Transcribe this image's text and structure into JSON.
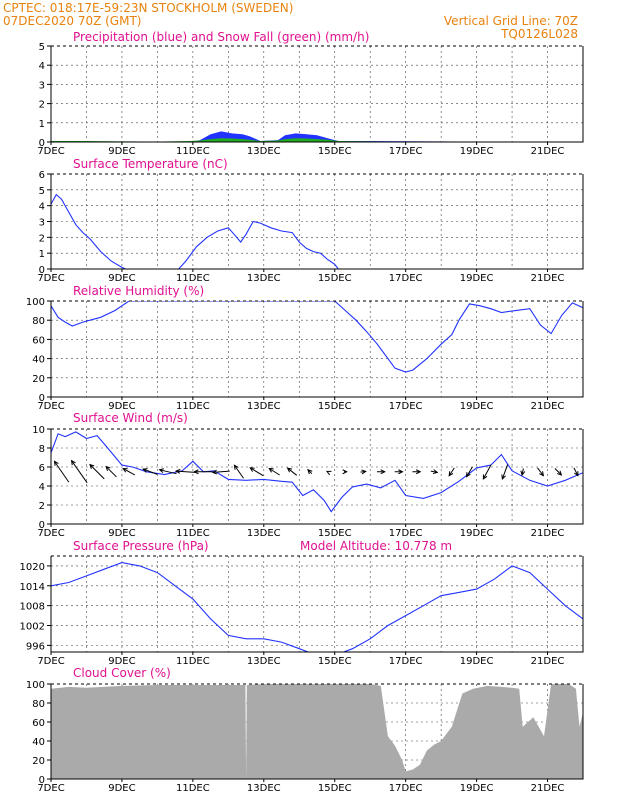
{
  "header": {
    "line1_left": "CPTEC:   018:17E-59:23N   STOCKHOLM (SWEDEN)",
    "line2_left": "07DEC2020 70Z (GMT)",
    "line2_right": "Vertical Grid Line: 70Z",
    "line3_right": "TQ0126L028"
  },
  "colors": {
    "header": "#e8820e",
    "title": "#e0108f",
    "line": "#2233ff",
    "snow": "#22aa22",
    "cloud": "#aaaaaa"
  },
  "x_ticks": [
    "7DEC",
    "9DEC",
    "11DEC",
    "13DEC",
    "15DEC",
    "17DEC",
    "19DEC",
    "21DEC"
  ],
  "chart_data": [
    {
      "id": "precip",
      "type": "area",
      "title": "Precipitation (blue) and Snow Fall (green) (mm/h)",
      "ylim": [
        0,
        5
      ],
      "y_ticks": [
        0,
        1,
        2,
        3,
        4,
        5
      ],
      "x_range_days": [
        7,
        22
      ],
      "grid": true,
      "series": [
        {
          "name": "Precipitation",
          "color": "#2233ff",
          "x": [
            7,
            10.9,
            11.2,
            11.5,
            11.8,
            12.1,
            12.4,
            12.6,
            12.9,
            13.4,
            13.6,
            13.9,
            14.2,
            14.5,
            14.8,
            15.1,
            22
          ],
          "values": [
            0,
            0,
            0.1,
            0.4,
            0.55,
            0.45,
            0.4,
            0.3,
            0.05,
            0.1,
            0.35,
            0.45,
            0.4,
            0.35,
            0.2,
            0.05,
            0
          ]
        },
        {
          "name": "Snow Fall",
          "color": "#22aa22",
          "x": [
            7,
            8,
            9,
            10,
            10.9,
            11.2,
            11.5,
            11.8,
            12.1,
            12.4,
            12.6,
            12.9,
            13.4,
            13.6,
            13.9,
            14.2,
            14.5,
            14.8,
            15.1,
            16,
            17,
            18,
            19,
            20,
            21,
            22
          ],
          "values": [
            0.05,
            0.05,
            0.03,
            0.02,
            0.05,
            0.08,
            0.15,
            0.2,
            0.18,
            0.15,
            0.12,
            0.05,
            0.08,
            0.15,
            0.2,
            0.18,
            0.15,
            0.12,
            0.05,
            0.03,
            0.02,
            0.02,
            0.02,
            0.02,
            0.02,
            0.02
          ]
        }
      ]
    },
    {
      "id": "temp",
      "type": "line",
      "title": "Surface Temperature (nC)",
      "ylim": [
        0,
        6
      ],
      "y_ticks": [
        0,
        1,
        2,
        3,
        4,
        5,
        6
      ],
      "x_range_days": [
        7,
        22
      ],
      "grid": true,
      "series": [
        {
          "name": "Temperature",
          "color": "#2233ff",
          "x": [
            7.0,
            7.15,
            7.3,
            7.5,
            7.7,
            7.9,
            8.1,
            8.4,
            8.7,
            9.0,
            9.1,
            10.6,
            10.8,
            11.1,
            11.4,
            11.7,
            12.0,
            12.2,
            12.35,
            12.5,
            12.7,
            12.9,
            13.2,
            13.5,
            13.8,
            14.0,
            14.2,
            14.4,
            14.6,
            14.8,
            15.0,
            15.1
          ],
          "values": [
            4.1,
            4.7,
            4.4,
            3.6,
            2.8,
            2.3,
            1.9,
            1.1,
            0.5,
            0.1,
            0,
            0,
            0.5,
            1.4,
            2.0,
            2.4,
            2.6,
            2.1,
            1.7,
            2.2,
            3.0,
            2.9,
            2.6,
            2.4,
            2.3,
            1.7,
            1.3,
            1.1,
            1.0,
            0.6,
            0.3,
            0
          ]
        }
      ]
    },
    {
      "id": "rh",
      "type": "line",
      "title": "Relative Humidity (%)",
      "ylim": [
        0,
        100
      ],
      "y_ticks": [
        0,
        20,
        40,
        60,
        80,
        100
      ],
      "x_range_days": [
        7,
        22
      ],
      "grid": true,
      "series": [
        {
          "name": "Relative Humidity",
          "color": "#2233ff",
          "x": [
            7.0,
            7.2,
            7.4,
            7.6,
            7.9,
            8.1,
            8.4,
            8.8,
            9.0,
            9.2,
            9.4,
            15.0,
            15.3,
            15.6,
            15.9,
            16.2,
            16.5,
            16.7,
            17.0,
            17.2,
            17.6,
            18.0,
            18.3,
            18.5,
            18.8,
            19.1,
            19.4,
            19.7,
            20.1,
            20.5,
            20.8,
            21.1,
            21.4,
            21.7,
            22.0
          ],
          "values": [
            95,
            83,
            78,
            74,
            78,
            80,
            83,
            90,
            95,
            100,
            100,
            100,
            90,
            80,
            68,
            55,
            40,
            30,
            26,
            28,
            40,
            55,
            65,
            80,
            97,
            95,
            92,
            88,
            90,
            92,
            75,
            66,
            85,
            98,
            93
          ]
        }
      ]
    },
    {
      "id": "wind",
      "type": "line",
      "title": "Surface Wind (m/s)",
      "ylim": [
        0,
        10
      ],
      "y_ticks": [
        0,
        2,
        4,
        6,
        8,
        10
      ],
      "x_range_days": [
        7,
        22
      ],
      "grid": true,
      "series": [
        {
          "name": "Wind speed",
          "color": "#2233ff",
          "x": [
            7.0,
            7.2,
            7.4,
            7.7,
            8.0,
            8.3,
            8.6,
            9.0,
            9.3,
            9.7,
            10.2,
            10.7,
            11.0,
            11.3,
            11.6,
            12.0,
            12.5,
            13.0,
            13.5,
            13.8,
            14.1,
            14.4,
            14.7,
            14.9,
            15.2,
            15.5,
            15.9,
            16.3,
            16.7,
            17.0,
            17.5,
            18.0,
            18.5,
            19.0,
            19.4,
            19.7,
            20.0,
            20.5,
            21.0,
            21.5,
            22.0
          ],
          "values": [
            7.5,
            9.5,
            9.2,
            9.7,
            9.0,
            9.3,
            8.0,
            6.2,
            6.0,
            5.5,
            5.2,
            5.6,
            6.6,
            5.5,
            5.6,
            4.7,
            4.6,
            4.7,
            4.5,
            4.4,
            3.0,
            3.6,
            2.5,
            1.3,
            2.8,
            3.9,
            4.2,
            3.8,
            4.6,
            3.0,
            2.7,
            3.3,
            4.5,
            5.9,
            6.2,
            7.3,
            5.6,
            4.6,
            4.0,
            4.6,
            5.4
          ]
        }
      ],
      "arrows": {
        "x": [
          7.3,
          7.8,
          8.3,
          8.7,
          9.2,
          9.8,
          10.3,
          10.8,
          11.3,
          11.8,
          12.3,
          12.8,
          13.3,
          13.8,
          14.3,
          14.8,
          15.3,
          15.8,
          16.3,
          16.8,
          17.3,
          17.8,
          18.3,
          18.8,
          19.3,
          19.8,
          20.3,
          20.8,
          21.3,
          21.8
        ],
        "u": [
          -2.2,
          -2.4,
          -2.2,
          -1.6,
          -1.8,
          -2.2,
          -2.6,
          -3.0,
          -2.8,
          -2.6,
          -1.4,
          -2.0,
          -1.6,
          -1.4,
          -0.6,
          -0.2,
          0.4,
          0.8,
          1.2,
          1.2,
          1.2,
          1.0,
          -0.8,
          -0.9,
          -1.2,
          -0.8,
          -0.2,
          0.9,
          1.0,
          0.6
        ],
        "v": [
          3.2,
          3.4,
          2.2,
          1.6,
          1.0,
          0.8,
          0.6,
          0.2,
          0,
          -0.2,
          2.0,
          1.2,
          1.0,
          1.1,
          0.6,
          0.1,
          0,
          0.1,
          0,
          0,
          0,
          -0.2,
          -1.2,
          -1.5,
          -2.2,
          -2.2,
          -1.0,
          -1.2,
          -1.0,
          -1.2
        ]
      }
    },
    {
      "id": "pressure",
      "type": "line",
      "title": "Surface Pressure (hPa)",
      "annotation": "Model Altitude: 10.778  m",
      "ylim": [
        994,
        1023
      ],
      "y_ticks": [
        996,
        1002,
        1008,
        1014,
        1020
      ],
      "x_range_days": [
        7,
        22
      ],
      "grid": true,
      "series": [
        {
          "name": "Surface Pressure",
          "color": "#2233ff",
          "x": [
            7.0,
            7.5,
            8.0,
            8.5,
            9.0,
            9.5,
            10.0,
            10.5,
            11.0,
            11.5,
            12.0,
            12.5,
            13.0,
            13.5,
            14.0,
            14.5,
            15.0,
            15.5,
            16.0,
            16.5,
            17.0,
            17.5,
            18.0,
            18.5,
            19.0,
            19.5,
            20.0,
            20.5,
            21.0,
            21.5,
            22.0
          ],
          "values": [
            1014,
            1015,
            1017,
            1019,
            1021,
            1020,
            1018,
            1014,
            1010,
            1004,
            999,
            998,
            998,
            997,
            995,
            993,
            993,
            995,
            998,
            1002,
            1005,
            1008,
            1011,
            1012,
            1013,
            1016,
            1020,
            1018,
            1013,
            1008,
            1004
          ]
        }
      ]
    },
    {
      "id": "cloud",
      "type": "area",
      "title": "Cloud Cover (%)",
      "ylim": [
        0,
        100
      ],
      "y_ticks": [
        0,
        20,
        40,
        60,
        80,
        100
      ],
      "x_range_days": [
        7,
        22
      ],
      "grid": true,
      "series": [
        {
          "name": "Cloud Cover",
          "color": "#aaaaaa",
          "x": [
            7.0,
            7.5,
            8.0,
            9.0,
            10.0,
            11.0,
            12.0,
            12.48,
            12.5,
            12.52,
            13.0,
            14.0,
            15.0,
            16.0,
            16.3,
            16.5,
            16.7,
            16.9,
            17.0,
            17.2,
            17.4,
            17.6,
            17.8,
            18.0,
            18.3,
            18.6,
            18.9,
            19.3,
            19.7,
            20.0,
            20.2,
            20.3,
            20.6,
            20.9,
            21.1,
            21.3,
            21.6,
            21.8,
            21.9,
            22.0
          ],
          "values": [
            95,
            97,
            96,
            98,
            99,
            99,
            99,
            99,
            0,
            99,
            100,
            100,
            100,
            100,
            98,
            45,
            35,
            20,
            8,
            10,
            15,
            30,
            36,
            40,
            55,
            90,
            95,
            98,
            97,
            96,
            95,
            55,
            65,
            45,
            100,
            100,
            100,
            95,
            55,
            70
          ]
        }
      ]
    }
  ]
}
